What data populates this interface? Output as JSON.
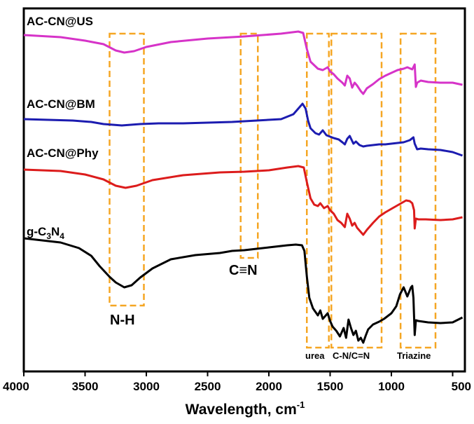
{
  "chart_data": {
    "type": "line",
    "title": "",
    "xlabel": "Wavelength, cm",
    "xlabel_superscript": "-1",
    "ylabel": "",
    "xlim": [
      4000,
      400
    ],
    "x_ticks": [
      4000,
      3500,
      3000,
      2500,
      2000,
      1500,
      1000,
      500
    ],
    "colors": {
      "US": "#d633c8",
      "BM": "#1c1cb0",
      "Phy": "#dc1c1c",
      "gcn": "#000000",
      "box": "#f5a623"
    },
    "series": [
      {
        "key": "US",
        "name": "AC-CN@US",
        "color": "#d633c8",
        "points": [
          [
            4000,
            50
          ],
          [
            3700,
            53
          ],
          [
            3500,
            58
          ],
          [
            3350,
            63
          ],
          [
            3250,
            72
          ],
          [
            3180,
            75
          ],
          [
            3100,
            73
          ],
          [
            3000,
            67
          ],
          [
            2800,
            60
          ],
          [
            2500,
            55
          ],
          [
            2200,
            52
          ],
          [
            1900,
            48
          ],
          [
            1760,
            45
          ],
          [
            1720,
            47
          ],
          [
            1690,
            70
          ],
          [
            1660,
            88
          ],
          [
            1600,
            98
          ],
          [
            1560,
            100
          ],
          [
            1520,
            96
          ],
          [
            1500,
            102
          ],
          [
            1470,
            106
          ],
          [
            1440,
            112
          ],
          [
            1400,
            118
          ],
          [
            1380,
            122
          ],
          [
            1360,
            108
          ],
          [
            1340,
            112
          ],
          [
            1320,
            125
          ],
          [
            1300,
            118
          ],
          [
            1280,
            122
          ],
          [
            1250,
            130
          ],
          [
            1230,
            134
          ],
          [
            1200,
            126
          ],
          [
            1150,
            120
          ],
          [
            1100,
            113
          ],
          [
            1050,
            108
          ],
          [
            1000,
            104
          ],
          [
            950,
            100
          ],
          [
            900,
            98
          ],
          [
            870,
            96
          ],
          [
            830,
            99
          ],
          [
            810,
            92
          ],
          [
            800,
            124
          ],
          [
            790,
            118
          ],
          [
            760,
            115
          ],
          [
            700,
            117
          ],
          [
            600,
            118
          ],
          [
            500,
            118
          ],
          [
            420,
            121
          ]
        ]
      },
      {
        "key": "BM",
        "name": "AC-CN@BM",
        "color": "#1c1cb0",
        "points": [
          [
            4000,
            170
          ],
          [
            3800,
            171
          ],
          [
            3600,
            172
          ],
          [
            3450,
            174
          ],
          [
            3350,
            177
          ],
          [
            3200,
            179
          ],
          [
            3050,
            177
          ],
          [
            2900,
            176
          ],
          [
            2700,
            176
          ],
          [
            2500,
            175
          ],
          [
            2300,
            174
          ],
          [
            2100,
            172
          ],
          [
            1900,
            170
          ],
          [
            1800,
            163
          ],
          [
            1760,
            155
          ],
          [
            1725,
            148
          ],
          [
            1700,
            155
          ],
          [
            1680,
            172
          ],
          [
            1660,
            183
          ],
          [
            1620,
            190
          ],
          [
            1590,
            192
          ],
          [
            1560,
            186
          ],
          [
            1530,
            193
          ],
          [
            1500,
            195
          ],
          [
            1470,
            197
          ],
          [
            1430,
            199
          ],
          [
            1400,
            203
          ],
          [
            1380,
            206
          ],
          [
            1360,
            198
          ],
          [
            1340,
            194
          ],
          [
            1310,
            205
          ],
          [
            1290,
            202
          ],
          [
            1260,
            207
          ],
          [
            1230,
            209
          ],
          [
            1200,
            208
          ],
          [
            1150,
            207
          ],
          [
            1100,
            206
          ],
          [
            1050,
            206
          ],
          [
            1000,
            205
          ],
          [
            950,
            204
          ],
          [
            900,
            203
          ],
          [
            850,
            200
          ],
          [
            820,
            196
          ],
          [
            810,
            205
          ],
          [
            790,
            213
          ],
          [
            760,
            212
          ],
          [
            700,
            213
          ],
          [
            600,
            214
          ],
          [
            500,
            217
          ],
          [
            420,
            222
          ]
        ]
      },
      {
        "key": "Phy",
        "name": "AC-CN@Phy",
        "color": "#dc1c1c",
        "points": [
          [
            4000,
            242
          ],
          [
            3700,
            244
          ],
          [
            3500,
            249
          ],
          [
            3350,
            256
          ],
          [
            3250,
            265
          ],
          [
            3170,
            268
          ],
          [
            3080,
            265
          ],
          [
            2950,
            257
          ],
          [
            2700,
            250
          ],
          [
            2400,
            246
          ],
          [
            2200,
            245
          ],
          [
            2000,
            243
          ],
          [
            1850,
            239
          ],
          [
            1760,
            237
          ],
          [
            1715,
            239
          ],
          [
            1690,
            260
          ],
          [
            1660,
            283
          ],
          [
            1630,
            292
          ],
          [
            1600,
            294
          ],
          [
            1580,
            290
          ],
          [
            1550,
            297
          ],
          [
            1520,
            294
          ],
          [
            1500,
            300
          ],
          [
            1470,
            305
          ],
          [
            1440,
            314
          ],
          [
            1410,
            318
          ],
          [
            1380,
            324
          ],
          [
            1360,
            305
          ],
          [
            1340,
            312
          ],
          [
            1320,
            322
          ],
          [
            1300,
            318
          ],
          [
            1280,
            325
          ],
          [
            1250,
            331
          ],
          [
            1230,
            335
          ],
          [
            1200,
            328
          ],
          [
            1150,
            318
          ],
          [
            1100,
            309
          ],
          [
            1050,
            303
          ],
          [
            1000,
            298
          ],
          [
            960,
            294
          ],
          [
            920,
            290
          ],
          [
            880,
            286
          ],
          [
            850,
            287
          ],
          [
            830,
            290
          ],
          [
            815,
            300
          ],
          [
            810,
            326
          ],
          [
            800,
            312
          ],
          [
            780,
            313
          ],
          [
            720,
            313
          ],
          [
            600,
            314
          ],
          [
            500,
            313
          ],
          [
            420,
            310
          ]
        ]
      },
      {
        "key": "gcn",
        "name": "g-C3N4",
        "color": "#000000",
        "points": [
          [
            4000,
            340
          ],
          [
            3850,
            343
          ],
          [
            3700,
            346
          ],
          [
            3550,
            354
          ],
          [
            3450,
            365
          ],
          [
            3380,
            380
          ],
          [
            3300,
            395
          ],
          [
            3250,
            403
          ],
          [
            3180,
            410
          ],
          [
            3120,
            407
          ],
          [
            3050,
            396
          ],
          [
            2950,
            383
          ],
          [
            2800,
            370
          ],
          [
            2600,
            364
          ],
          [
            2400,
            361
          ],
          [
            2300,
            358
          ],
          [
            2200,
            357
          ],
          [
            2100,
            355
          ],
          [
            2000,
            353
          ],
          [
            1850,
            350
          ],
          [
            1780,
            349
          ],
          [
            1730,
            350
          ],
          [
            1710,
            358
          ],
          [
            1690,
            395
          ],
          [
            1670,
            425
          ],
          [
            1640,
            440
          ],
          [
            1600,
            450
          ],
          [
            1580,
            443
          ],
          [
            1560,
            455
          ],
          [
            1520,
            447
          ],
          [
            1500,
            458
          ],
          [
            1480,
            466
          ],
          [
            1450,
            472
          ],
          [
            1420,
            480
          ],
          [
            1390,
            468
          ],
          [
            1370,
            482
          ],
          [
            1350,
            456
          ],
          [
            1330,
            468
          ],
          [
            1310,
            478
          ],
          [
            1290,
            472
          ],
          [
            1270,
            486
          ],
          [
            1250,
            482
          ],
          [
            1230,
            489
          ],
          [
            1210,
            479
          ],
          [
            1190,
            470
          ],
          [
            1150,
            463
          ],
          [
            1100,
            459
          ],
          [
            1060,
            455
          ],
          [
            1000,
            447
          ],
          [
            960,
            437
          ],
          [
            930,
            420
          ],
          [
            900,
            410
          ],
          [
            870,
            423
          ],
          [
            840,
            410
          ],
          [
            830,
            408
          ],
          [
            820,
            425
          ],
          [
            810,
            478
          ],
          [
            800,
            457
          ],
          [
            780,
            458
          ],
          [
            700,
            460
          ],
          [
            600,
            461
          ],
          [
            500,
            460
          ],
          [
            420,
            453
          ]
        ]
      }
    ],
    "series_labels": [
      "AC-CN@US",
      "AC-CN@BM",
      "AC-CN@Phy"
    ],
    "gcn_label": {
      "prefix": "g-C",
      "sub1": "3",
      "mid": "N",
      "sub2": "4"
    },
    "regions": [
      {
        "key": "nh",
        "label": "N-H",
        "from": 3300,
        "to": 3020
      },
      {
        "key": "cn_triple",
        "label": "C≡N",
        "from": 2230,
        "to": 2090
      },
      {
        "key": "urea",
        "label": "urea",
        "from": 1690,
        "to": 1510
      },
      {
        "key": "cn_ring",
        "label": "C-N/C=N",
        "from": 1490,
        "to": 1080
      },
      {
        "key": "triazine",
        "label": "Triazine",
        "from": 925,
        "to": 640
      }
    ]
  }
}
